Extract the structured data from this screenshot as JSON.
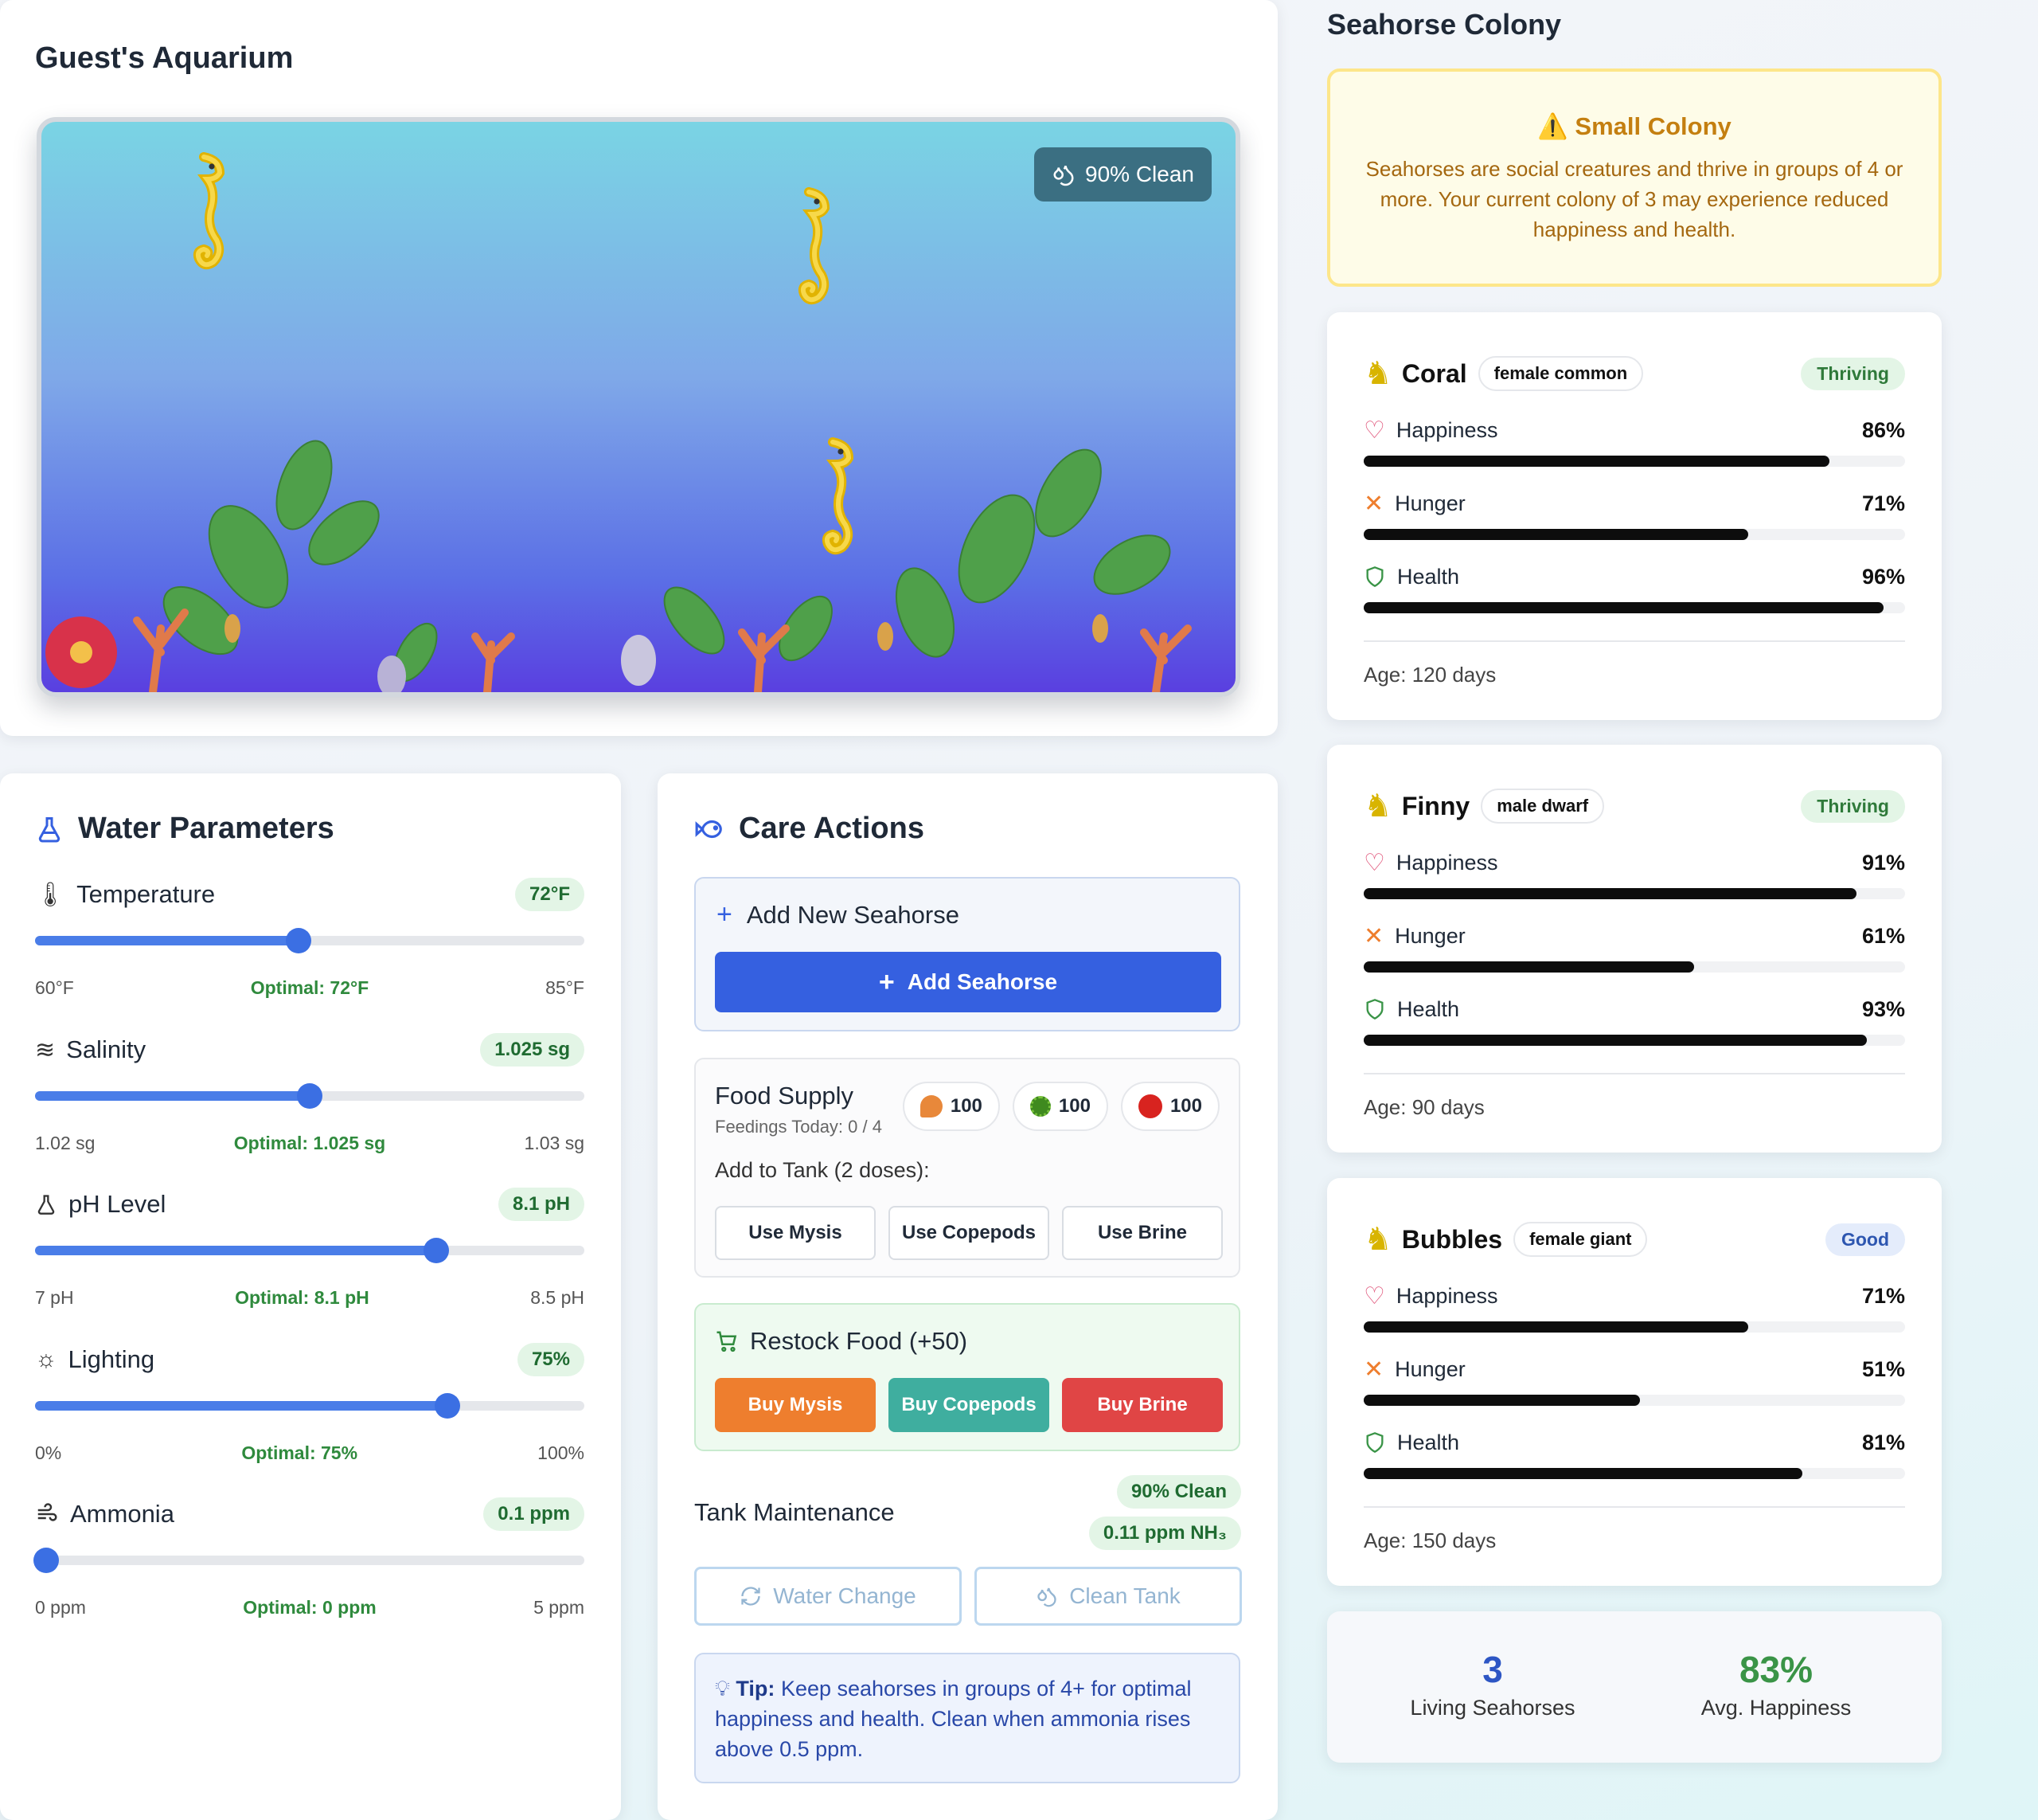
{
  "aquarium": {
    "title": "Guest's Aquarium",
    "clean_chip": "90% Clean"
  },
  "water": {
    "title": "Water Parameters",
    "params": [
      {
        "name": "Temperature",
        "badge": "72°F",
        "min": "60°F",
        "optimal": "Optimal: 72°F",
        "max": "85°F",
        "level": 0.48,
        "icon": "thermometer-icon"
      },
      {
        "name": "Salinity",
        "badge": "1.025 sg",
        "min": "1.02 sg",
        "optimal": "Optimal: 1.025 sg",
        "max": "1.03 sg",
        "level": 0.5,
        "icon": "waves-icon"
      },
      {
        "name": "pH Level",
        "badge": "8.1 pH",
        "min": "7 pH",
        "optimal": "Optimal: 8.1 pH",
        "max": "8.5 pH",
        "level": 0.73,
        "icon": "flask-icon"
      },
      {
        "name": "Lighting",
        "badge": "75%",
        "min": "0%",
        "optimal": "Optimal: 75%",
        "max": "100%",
        "level": 0.75,
        "icon": "sun-icon"
      },
      {
        "name": "Ammonia",
        "badge": "0.1 ppm",
        "min": "0 ppm",
        "optimal": "Optimal: 0 ppm",
        "max": "5 ppm",
        "level": 0.02,
        "icon": "wind-icon"
      }
    ]
  },
  "care": {
    "title": "Care Actions",
    "add_new_label": "Add New Seahorse",
    "add_button": "Add Seahorse",
    "food_title": "Food Supply",
    "feedings": "Feedings Today: 0 / 4",
    "stock": [
      "100",
      "100",
      "100"
    ],
    "dose_label": "Add to Tank (2 doses):",
    "use_buttons": [
      "Use Mysis",
      "Use Copepods",
      "Use Brine"
    ],
    "restock_title": "Restock Food (+50)",
    "buy_buttons": [
      "Buy Mysis",
      "Buy Copepods",
      "Buy Brine"
    ],
    "buy_colors": [
      "#ee7e2e",
      "#3fae9f",
      "#e04545"
    ],
    "maintenance_title": "Tank Maintenance",
    "maint_badges": [
      "90% Clean",
      "0.11 ppm NH₃"
    ],
    "water_change": "Water Change",
    "clean_tank": "Clean Tank",
    "tip_label": "Tip:",
    "tip_text": "Keep seahorses in groups of 4+ for optimal happiness and health. Clean when ammonia rises above 0.5 ppm."
  },
  "colony": {
    "title": "Seahorse Colony",
    "warning_title": "⚠️ Small Colony",
    "warning_text": "Seahorses are social creatures and thrive in groups of 4 or more. Your current colony of 3 may experience reduced happiness and health.",
    "seahorses": [
      {
        "name": "Coral",
        "type": "female common",
        "status": "Thriving",
        "happiness": "86%",
        "hunger": "71%",
        "health": "96%",
        "happiness_v": 0.86,
        "hunger_v": 0.71,
        "health_v": 0.96,
        "age": "Age: 120 days"
      },
      {
        "name": "Finny",
        "type": "male dwarf",
        "status": "Thriving",
        "happiness": "91%",
        "hunger": "61%",
        "health": "93%",
        "happiness_v": 0.91,
        "hunger_v": 0.61,
        "health_v": 0.93,
        "age": "Age: 90 days"
      },
      {
        "name": "Bubbles",
        "type": "female giant",
        "status": "Good",
        "happiness": "71%",
        "hunger": "51%",
        "health": "81%",
        "happiness_v": 0.71,
        "hunger_v": 0.51,
        "health_v": 0.81,
        "age": "Age: 150 days"
      }
    ],
    "stat_labels": {
      "happiness": "Happiness",
      "hunger": "Hunger",
      "health": "Health"
    },
    "summary": {
      "living": "3",
      "living_label": "Living Seahorses",
      "avg": "83%",
      "avg_label": "Avg. Happiness"
    }
  },
  "colors": {
    "primary": "#3560e0",
    "green": "#3a9447",
    "blue_num": "#2d56c4"
  }
}
